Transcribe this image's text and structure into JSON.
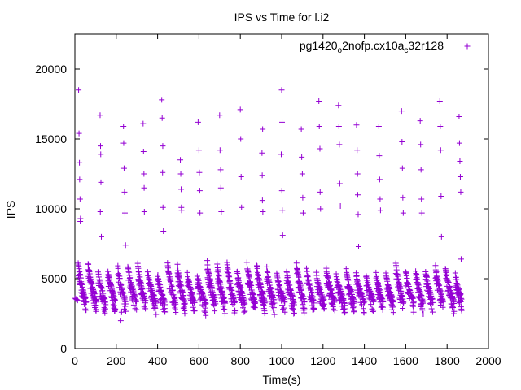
{
  "chart_data": {
    "type": "scatter",
    "title": "IPS vs Time for l.i2",
    "xlabel": "Time(s)",
    "ylabel": "IPS",
    "xlim": [
      0,
      2000
    ],
    "ylim": [
      0,
      22500
    ],
    "xticks": [
      "0",
      "200",
      "400",
      "600",
      "800",
      "1000",
      "1200",
      "1400",
      "1600",
      "1800",
      "2000"
    ],
    "yticks": [
      "0",
      "5000",
      "10000",
      "15000",
      "20000"
    ],
    "grid": false,
    "legend_position": "top-right",
    "marker": "plus",
    "series": [
      {
        "name": "pg1420_o2nofp.cx10a_c32r128",
        "name_parts": {
          "p1": "pg1420",
          "s1": "o",
          "p2": "2nofp.cx10a",
          "s2": "c",
          "p3": "32r128"
        },
        "color": "#9400d3",
        "description": "periodic bursts every ~48 s: low band decays from ~6000 to ~3500 IPS, with sparse high points between 7000 and 18500 IPS",
        "cycle_period_s": 48,
        "cycle_start_s": 16,
        "low_band_range": [
          3300,
          6200
        ],
        "sparse_samples": [
          [
            1,
            3600
          ],
          [
            5,
            3550
          ],
          [
            9,
            3500
          ],
          [
            13,
            3450
          ],
          [
            18,
            18500
          ],
          [
            20,
            15400
          ],
          [
            22,
            13300
          ],
          [
            23,
            12100
          ],
          [
            25,
            10700
          ],
          [
            27,
            9300
          ],
          [
            26,
            9100
          ],
          [
            122,
            16700
          ],
          [
            124,
            14500
          ],
          [
            125,
            13900
          ],
          [
            126,
            11900
          ],
          [
            123,
            9800
          ],
          [
            128,
            8000
          ],
          [
            222,
            2000
          ],
          [
            226,
            2600
          ],
          [
            235,
            15900
          ],
          [
            236,
            14700
          ],
          [
            238,
            12900
          ],
          [
            240,
            11200
          ],
          [
            242,
            9700
          ],
          [
            245,
            7400
          ],
          [
            330,
            16100
          ],
          [
            332,
            14100
          ],
          [
            334,
            12500
          ],
          [
            335,
            11500
          ],
          [
            336,
            9800
          ],
          [
            420,
            17800
          ],
          [
            422,
            16500
          ],
          [
            425,
            14500
          ],
          [
            424,
            12600
          ],
          [
            426,
            10100
          ],
          [
            428,
            8400
          ],
          [
            510,
            13500
          ],
          [
            512,
            12500
          ],
          [
            514,
            11400
          ],
          [
            515,
            10100
          ],
          [
            516,
            9900
          ],
          [
            596,
            16200
          ],
          [
            600,
            14200
          ],
          [
            602,
            12600
          ],
          [
            604,
            11300
          ],
          [
            605,
            9700
          ],
          [
            700,
            16700
          ],
          [
            702,
            14200
          ],
          [
            705,
            12800
          ],
          [
            706,
            11500
          ],
          [
            708,
            9800
          ],
          [
            800,
            17100
          ],
          [
            802,
            15000
          ],
          [
            804,
            12300
          ],
          [
            806,
            10100
          ],
          [
            908,
            15700
          ],
          [
            905,
            14000
          ],
          [
            906,
            12400
          ],
          [
            907,
            10600
          ],
          [
            909,
            9800
          ],
          [
            1000,
            18500
          ],
          [
            1002,
            16200
          ],
          [
            998,
            13900
          ],
          [
            1001,
            11300
          ],
          [
            1003,
            9900
          ],
          [
            1005,
            8100
          ],
          [
            1095,
            15700
          ],
          [
            1097,
            13700
          ],
          [
            1100,
            12500
          ],
          [
            1102,
            10800
          ],
          [
            1104,
            9700
          ],
          [
            1180,
            17700
          ],
          [
            1182,
            15900
          ],
          [
            1185,
            14300
          ],
          [
            1186,
            11200
          ],
          [
            1188,
            10000
          ],
          [
            1275,
            17400
          ],
          [
            1277,
            15900
          ],
          [
            1279,
            14600
          ],
          [
            1281,
            11800
          ],
          [
            1284,
            10200
          ],
          [
            1362,
            16000
          ],
          [
            1365,
            14200
          ],
          [
            1367,
            12500
          ],
          [
            1368,
            11000
          ],
          [
            1370,
            9600
          ],
          [
            1372,
            7300
          ],
          [
            1470,
            15900
          ],
          [
            1472,
            13800
          ],
          [
            1474,
            12100
          ],
          [
            1476,
            10700
          ],
          [
            1478,
            9900
          ],
          [
            1580,
            17000
          ],
          [
            1582,
            14800
          ],
          [
            1584,
            12900
          ],
          [
            1586,
            10800
          ],
          [
            1588,
            9700
          ],
          [
            1670,
            16300
          ],
          [
            1672,
            14600
          ],
          [
            1674,
            12800
          ],
          [
            1676,
            10700
          ],
          [
            1678,
            9700
          ],
          [
            1765,
            17700
          ],
          [
            1767,
            15900
          ],
          [
            1769,
            14200
          ],
          [
            1771,
            10900
          ],
          [
            1773,
            8000
          ],
          [
            1858,
            16600
          ],
          [
            1860,
            14700
          ],
          [
            1862,
            13400
          ],
          [
            1864,
            12300
          ],
          [
            1866,
            11200
          ],
          [
            1868,
            6400
          ]
        ]
      }
    ]
  }
}
